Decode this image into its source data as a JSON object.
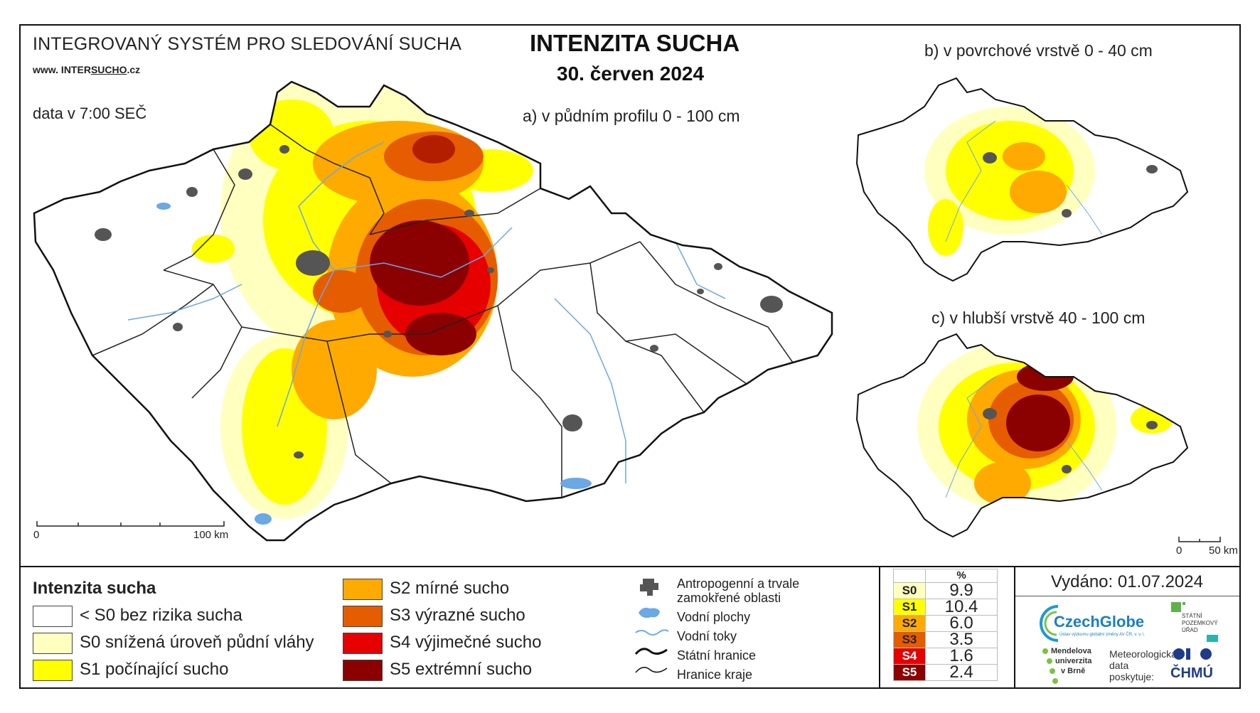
{
  "header": {
    "system_title": "INTEGROVANÝ SYSTÉM PRO SLEDOVÁNÍ SUCHA",
    "website_prefix": "www. INTER",
    "website_mid": "SUCHO",
    "website_suffix": ".cz",
    "data_time": "data v 7:00 SEČ",
    "main_title": "INTENZITA SUCHA",
    "date": "30. červen 2024"
  },
  "maps": {
    "a_label": "a) v půdním profilu 0 - 100 cm",
    "b_label": "b) v povrchové vrstvě 0 - 40 cm",
    "c_label": "c) v hlubší vrstvě 40 - 100 cm",
    "scale_main": {
      "zero": "0",
      "end": "100 km"
    },
    "scale_small": {
      "zero": "0",
      "end": "50 km"
    }
  },
  "legend": {
    "title": "Intenzita sucha",
    "classes": [
      {
        "label": "< S0 bez rizika sucha",
        "color": "#ffffff"
      },
      {
        "label": "S0 snížená úroveň půdní vláhy",
        "color": "#ffffc0"
      },
      {
        "label": "S1 počínající sucho",
        "color": "#ffff00"
      },
      {
        "label": "S2 mírné sucho",
        "color": "#ffaa00"
      },
      {
        "label": "S3 výrazné sucho",
        "color": "#e65c00"
      },
      {
        "label": "S4 výjimečné sucho",
        "color": "#e60000"
      },
      {
        "label": "S5 extrémní sucho",
        "color": "#8b0000"
      }
    ]
  },
  "symbols": {
    "anthropogenic": "Antropogenní a trvale zamokřené oblasti",
    "water_areas": "Vodní plochy",
    "water_streams": "Vodní toky",
    "state_border": "Státní hranice",
    "region_border": "Hranice kraje"
  },
  "percent_table": {
    "header": "%",
    "rows": [
      {
        "code": "S0",
        "value": "9.9",
        "color": "#ffffc0"
      },
      {
        "code": "S1",
        "value": "10.4",
        "color": "#ffff00"
      },
      {
        "code": "S2",
        "value": "6.0",
        "color": "#ffaa00"
      },
      {
        "code": "S3",
        "value": "3.5",
        "color": "#e65c00"
      },
      {
        "code": "S4",
        "value": "1.6",
        "color": "#e60000"
      },
      {
        "code": "S5",
        "value": "2.4",
        "color": "#8b0000"
      }
    ]
  },
  "issued": "Vydáno: 01.07.2024",
  "logos": {
    "czechglobe": "CzechGlobe",
    "czechglobe_sub": "Ústav výzkumu globální změny AV ČR, v. v. i.",
    "spu_line1": "STÁTNÍ",
    "spu_line2": "POZEMKOVÝ",
    "spu_line3": "ÚŘAD",
    "mendel_line1": "Mendelova",
    "mendel_line2": "univerzita",
    "mendel_line3": "v Brně",
    "meteo_line1": "Meteorologická",
    "meteo_line2": "data",
    "meteo_line3": "poskytuje:",
    "chmu": "ČHMÚ"
  }
}
